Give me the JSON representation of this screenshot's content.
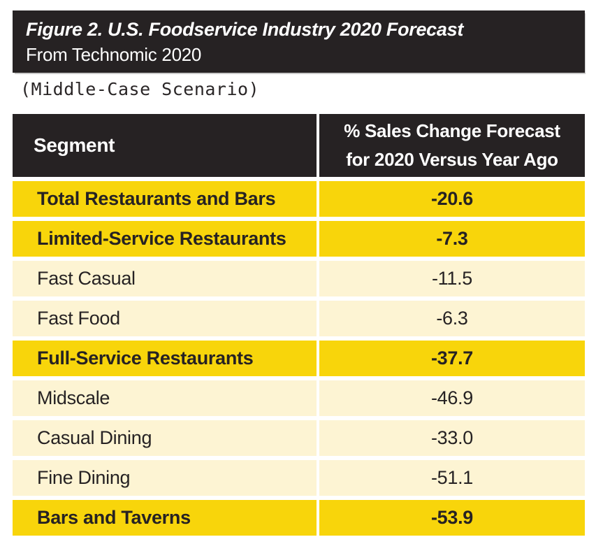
{
  "figure": {
    "title": "Figure 2. U.S. Foodservice Industry 2020 Forecast",
    "source": "From Technomic 2020",
    "scenario": "(Middle-Case Scenario)"
  },
  "colors": {
    "banner_bg": "#262223",
    "header_bg": "#262223",
    "emphasis_row_bg": "#f8d50b",
    "subrow_bg": "#fdf4d3",
    "text_dark": "#262223",
    "text_light": "#ffffff"
  },
  "table": {
    "columns": {
      "segment": "Segment",
      "forecast": "% Sales Change Forecast\nfor 2020 Versus Year Ago"
    },
    "rows": [
      {
        "segment": "Total Restaurants and Bars",
        "value": "-20.6",
        "emphasis": true
      },
      {
        "segment": "Limited-Service Restaurants",
        "value": "-7.3",
        "emphasis": true
      },
      {
        "segment": "Fast Casual",
        "value": "-11.5",
        "emphasis": false
      },
      {
        "segment": "Fast Food",
        "value": "-6.3",
        "emphasis": false
      },
      {
        "segment": "Full-Service Restaurants",
        "value": "-37.7",
        "emphasis": true
      },
      {
        "segment": "Midscale",
        "value": "-46.9",
        "emphasis": false
      },
      {
        "segment": "Casual Dining",
        "value": "-33.0",
        "emphasis": false
      },
      {
        "segment": "Fine Dining",
        "value": "-51.1",
        "emphasis": false
      },
      {
        "segment": "Bars and Taverns",
        "value": "-53.9",
        "emphasis": true
      }
    ]
  },
  "chart_data": {
    "type": "table",
    "title": "Figure 2. U.S. Foodservice Industry 2020 Forecast",
    "subtitle": "(Middle-Case Scenario)",
    "source": "From Technomic 2020",
    "columns": [
      "Segment",
      "% Sales Change Forecast for 2020 Versus Year Ago"
    ],
    "rows": [
      [
        "Total Restaurants and Bars",
        -20.6
      ],
      [
        "Limited-Service Restaurants",
        -7.3
      ],
      [
        "Fast Casual",
        -11.5
      ],
      [
        "Fast Food",
        -6.3
      ],
      [
        "Full-Service Restaurants",
        -37.7
      ],
      [
        "Midscale",
        -46.9
      ],
      [
        "Casual Dining",
        -33.0
      ],
      [
        "Fine Dining",
        -51.1
      ],
      [
        "Bars and Taverns",
        -53.9
      ]
    ],
    "emphasized_rows": [
      "Total Restaurants and Bars",
      "Limited-Service Restaurants",
      "Full-Service Restaurants",
      "Bars and Taverns"
    ]
  }
}
